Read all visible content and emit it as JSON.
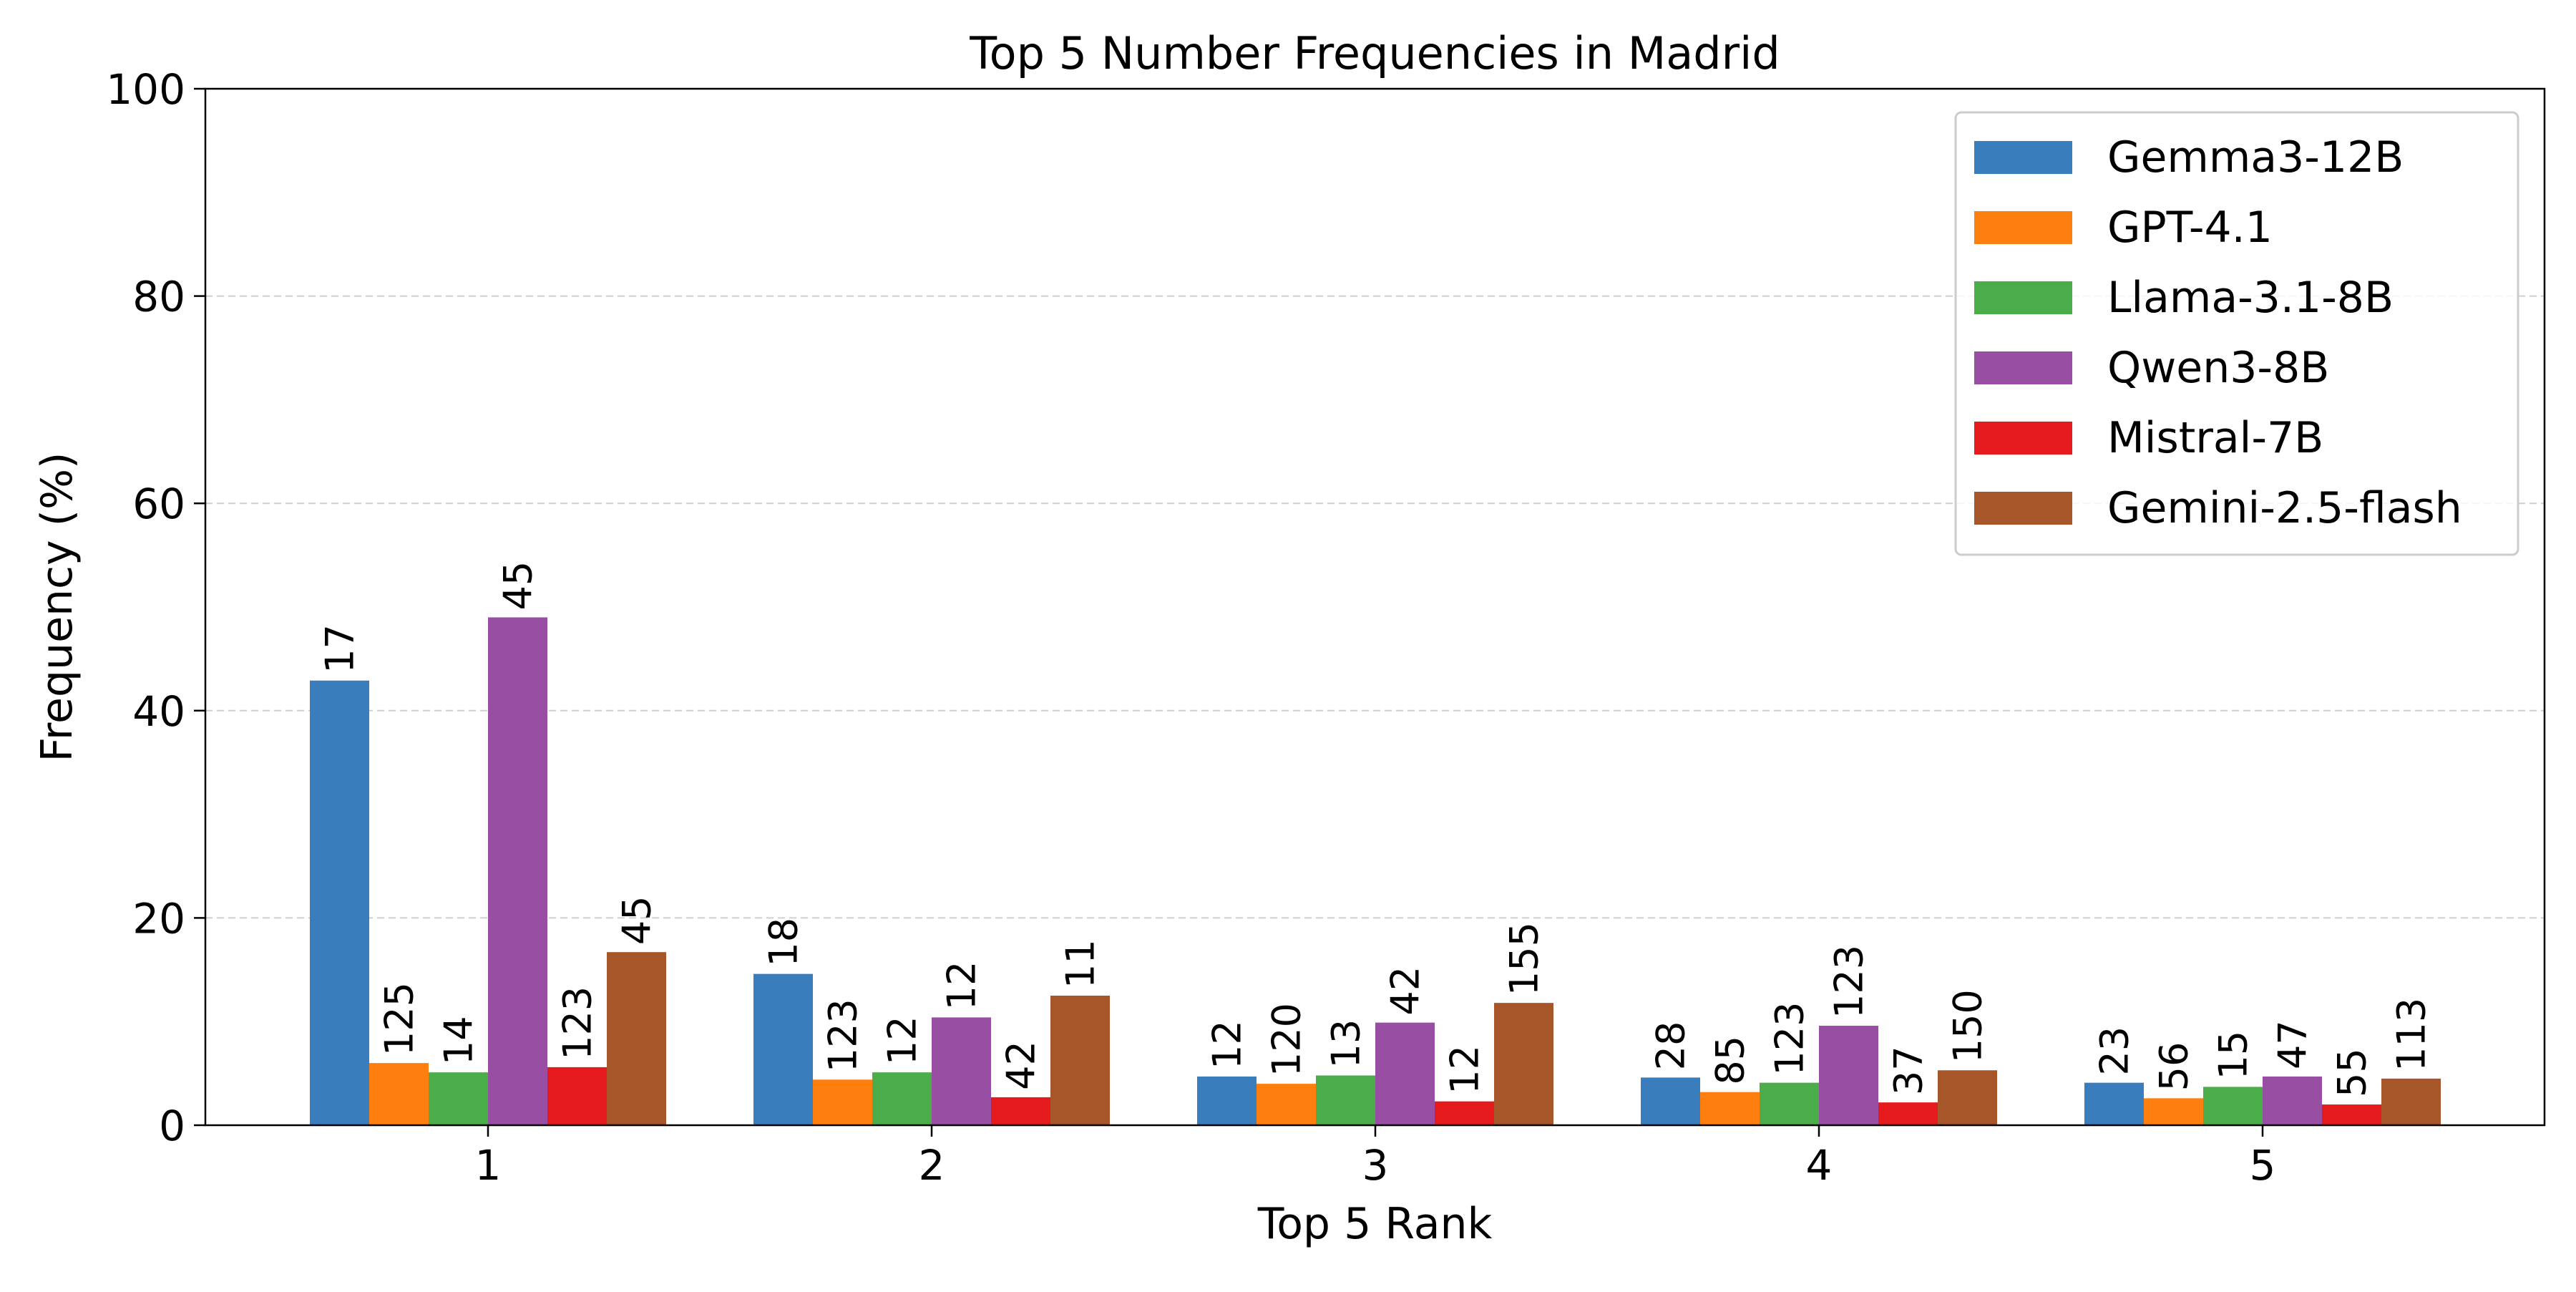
{
  "chart_data": {
    "type": "bar",
    "title": "Top 5 Number Frequencies in Madrid",
    "xlabel": "Top 5 Rank",
    "ylabel": "Frequency (%)",
    "categories": [
      "1",
      "2",
      "3",
      "4",
      "5"
    ],
    "ylim": [
      0,
      100
    ],
    "yticks": [
      "0",
      "20",
      "40",
      "60",
      "80",
      "100"
    ],
    "grid": "horizontal dashed",
    "legend_position": "top-right",
    "series": [
      {
        "name": "Gemma3-12B",
        "color": "#3a7dbc",
        "values": [
          42.9,
          14.6,
          4.7,
          4.6,
          4.1
        ],
        "labels": [
          "17",
          "18",
          "12",
          "28",
          "23"
        ]
      },
      {
        "name": "GPT-4.1",
        "color": "#ff7f0e",
        "values": [
          6.0,
          4.4,
          4.0,
          3.2,
          2.6
        ],
        "labels": [
          "125",
          "123",
          "120",
          "85",
          "56"
        ]
      },
      {
        "name": "Llama-3.1-8B",
        "color": "#4aad4a",
        "values": [
          5.1,
          5.1,
          4.8,
          4.1,
          3.7
        ],
        "labels": [
          "14",
          "12",
          "13",
          "123",
          "15"
        ]
      },
      {
        "name": "Qwen3-8B",
        "color": "#984ea3",
        "values": [
          49.0,
          10.4,
          9.9,
          9.6,
          4.7
        ],
        "labels": [
          "45",
          "12",
          "42",
          "123",
          "47"
        ]
      },
      {
        "name": "Mistral-7B",
        "color": "#e41a1c",
        "values": [
          5.6,
          2.7,
          2.3,
          2.2,
          2.0
        ],
        "labels": [
          "123",
          "42",
          "12",
          "37",
          "55"
        ]
      },
      {
        "name": "Gemini-2.5-flash",
        "color": "#a65628",
        "values": [
          16.7,
          12.5,
          11.8,
          5.3,
          4.5
        ],
        "labels": [
          "45",
          "11",
          "155",
          "150",
          "113"
        ]
      }
    ]
  }
}
